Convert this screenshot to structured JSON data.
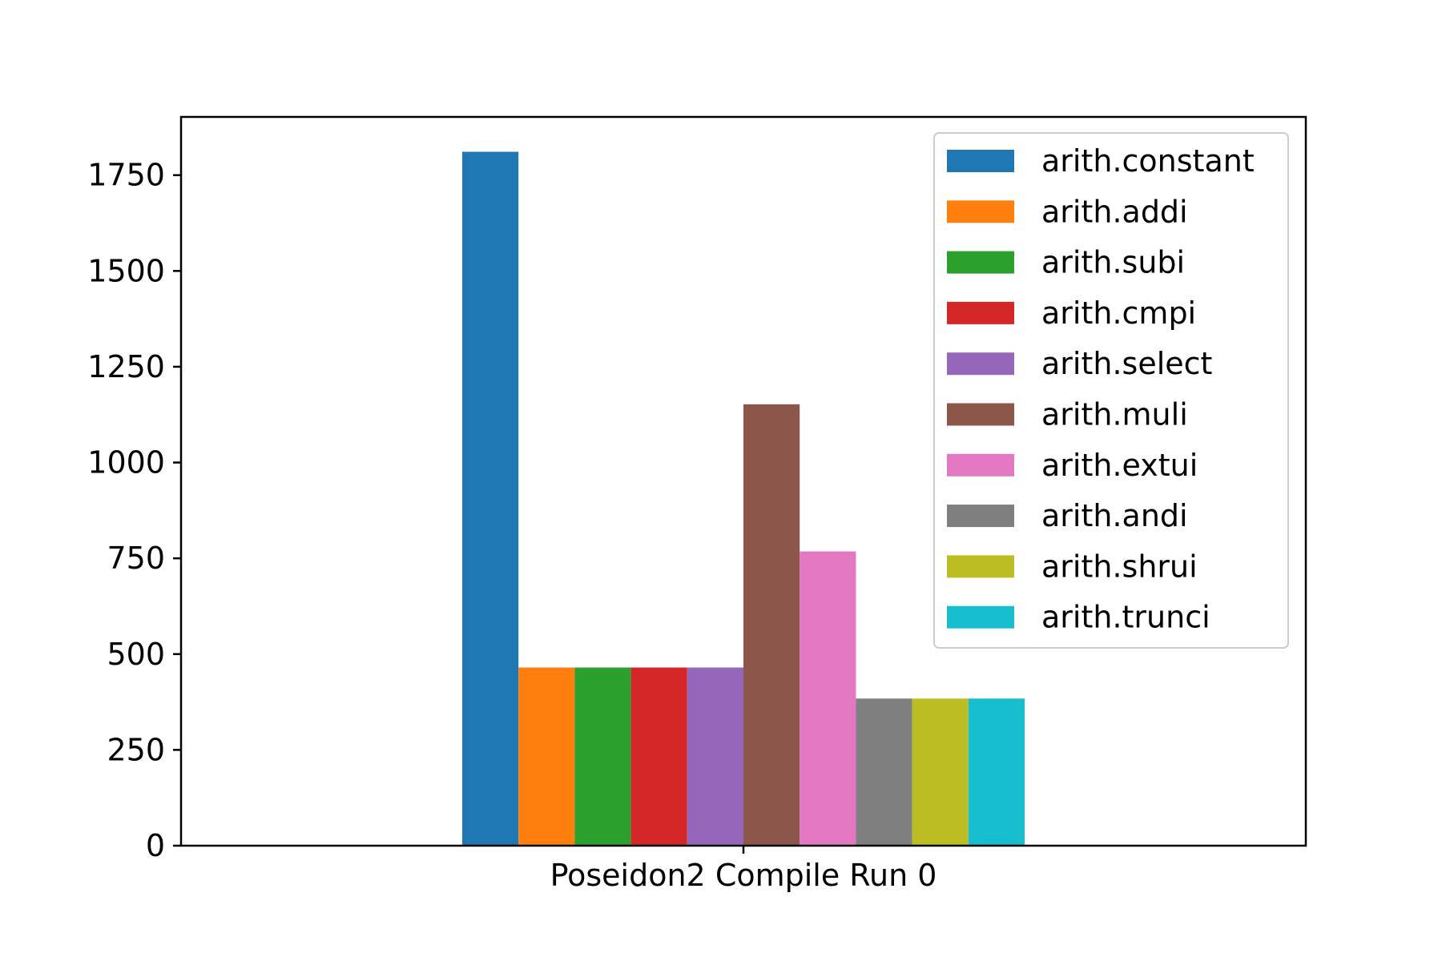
{
  "chart_data": {
    "type": "bar",
    "categories": [
      "Poseidon2 Compile Run 0"
    ],
    "series": [
      {
        "name": "arith.constant",
        "values": [
          1811
        ],
        "color": "#1f77b4"
      },
      {
        "name": "arith.addi",
        "values": [
          465
        ],
        "color": "#ff7f0e"
      },
      {
        "name": "arith.subi",
        "values": [
          465
        ],
        "color": "#2ca02c"
      },
      {
        "name": "arith.cmpi",
        "values": [
          465
        ],
        "color": "#d62728"
      },
      {
        "name": "arith.select",
        "values": [
          465
        ],
        "color": "#9467bd"
      },
      {
        "name": "arith.muli",
        "values": [
          1152
        ],
        "color": "#8c564b"
      },
      {
        "name": "arith.extui",
        "values": [
          768
        ],
        "color": "#e377c2"
      },
      {
        "name": "arith.andi",
        "values": [
          384
        ],
        "color": "#7f7f7f"
      },
      {
        "name": "arith.shrui",
        "values": [
          384
        ],
        "color": "#bcbd22"
      },
      {
        "name": "arith.trunci",
        "values": [
          384
        ],
        "color": "#17becf"
      }
    ],
    "y_ticks": [
      0,
      250,
      500,
      750,
      1000,
      1250,
      1500,
      1750
    ],
    "ylim": [
      0,
      1902
    ],
    "xlim": [
      -0.5,
      0.5
    ],
    "grid": false,
    "legend_position": "top-right"
  }
}
